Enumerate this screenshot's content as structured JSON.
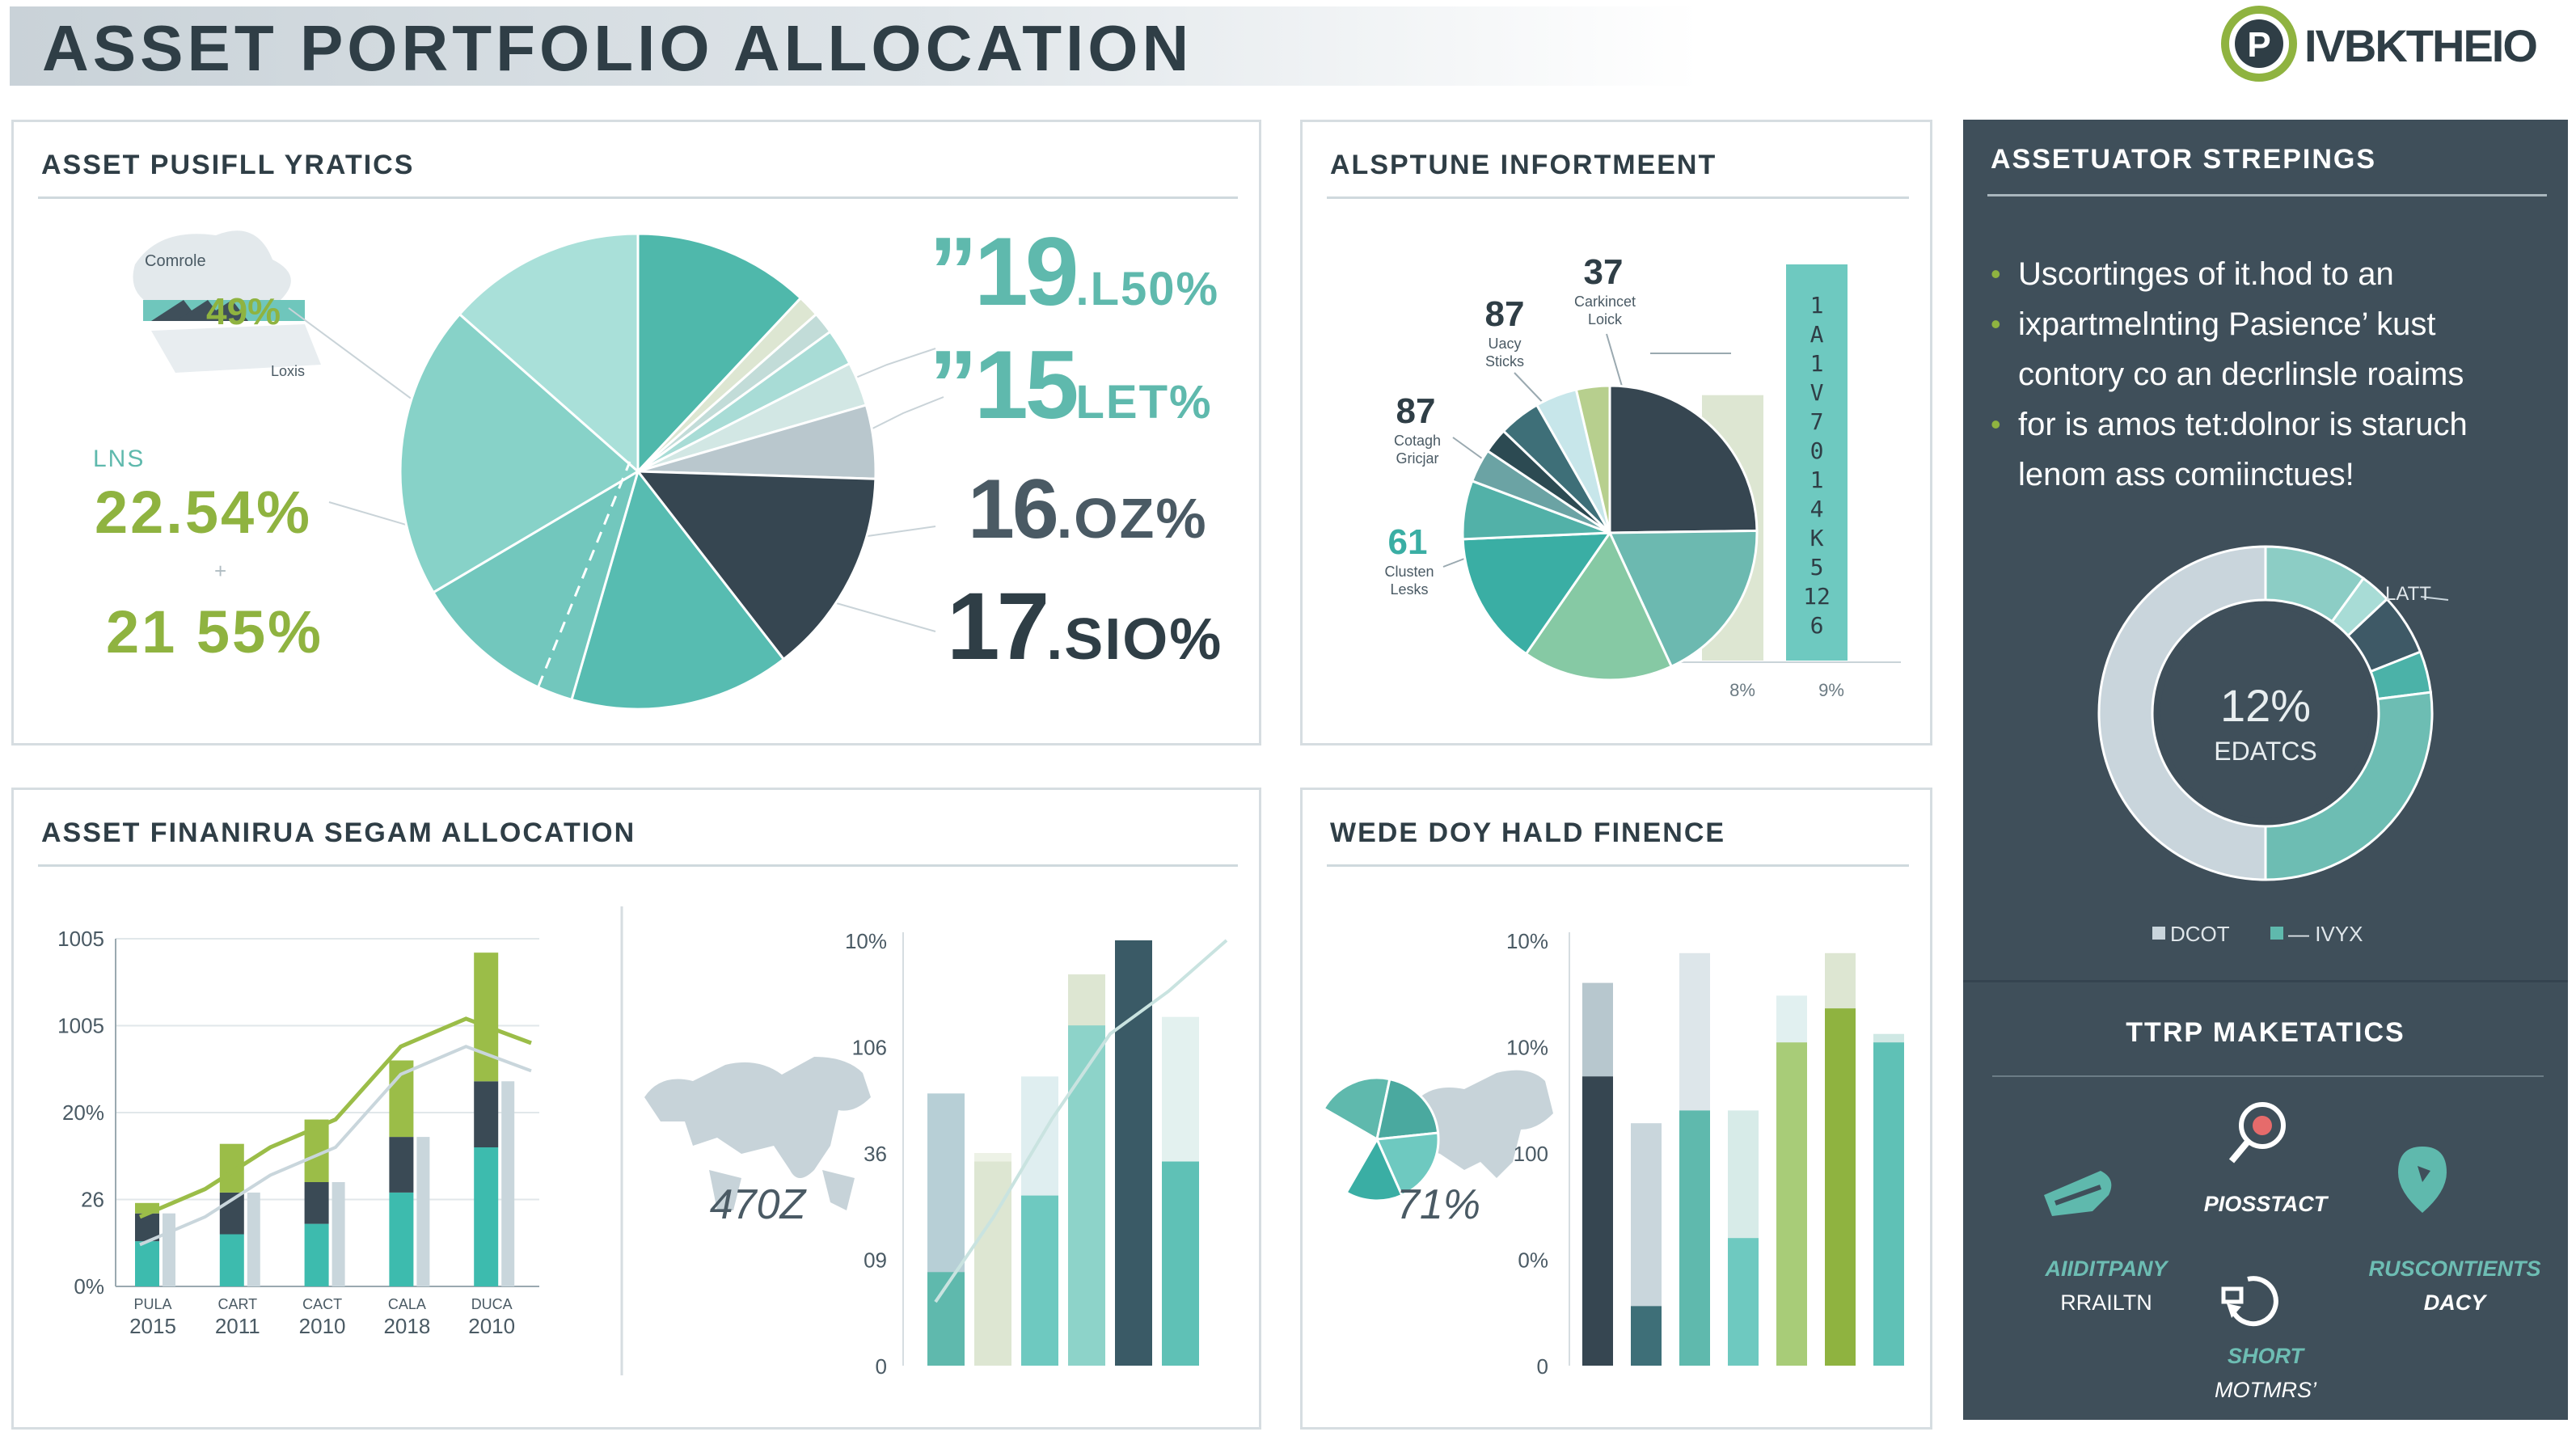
{
  "header": {
    "title": "ASSET PORTFOLIO  ALLOCATION",
    "brand": "IVBKTHEIO",
    "brand_letter": "P"
  },
  "colors": {
    "teal": "#5fb9ad",
    "light_teal": "#8dd3c9",
    "green": "#8fb340",
    "dark": "#3a4a55",
    "slate_panel": "#3f4f5a",
    "pale": "#dde6ea"
  },
  "panels": {
    "ratios": {
      "title": "ASSET PUSIFLL YRATICS",
      "callout_top": "Comrole",
      "callout_value": "49%",
      "callout_small": "Loxis",
      "lns": "LNS",
      "left_values": [
        "22.54%",
        "21 55%"
      ],
      "separator": "+",
      "big_values": [
        {
          "main": "”19",
          "suffix": ".L50%"
        },
        {
          "main": "”15",
          "suffix": "LET%"
        },
        {
          "main": "16",
          "suffix": ".OZ%"
        },
        {
          "main": "17",
          "suffix": ".SIO%"
        }
      ]
    },
    "info": {
      "title": "ALSPTUNE INFORTMEENT",
      "labels": [
        {
          "value": "37",
          "text1": "Carkincet",
          "text2": "Loick"
        },
        {
          "value": "87",
          "text1": "Uacy",
          "text2": "Sticks"
        },
        {
          "value": "87",
          "text1": "Cotagh",
          "text2": "Gricjar"
        },
        {
          "value": "61",
          "text1": "Clusten",
          "text2": "Lesks"
        }
      ],
      "vertical_text": "1 A 1 V 7 0 1 4 K 5 12 6",
      "bottom_labels": [
        "8%",
        "9%"
      ]
    },
    "alloc": {
      "title": "ASSET FINANIRUA SEGAM ALLOCATION",
      "map_value": "470Z"
    },
    "fin": {
      "title": "WEDE DOY HALD FINENCE",
      "map_value": "71%"
    },
    "side": {
      "title": "ASSETUATOR STREPINGS",
      "bullets": [
        "Uscortinges of it.hod to an",
        "ixpartmelnting Pasience’ kust",
        "contory co an decrlinsle roaims",
        "for is amos tet:dolnor is staruch",
        "lenom ass comiinctues!"
      ],
      "donut_center_value": "12%",
      "donut_center_label": "EDATCS",
      "donut_tag": "LATT",
      "legend": [
        {
          "label": "DCOT",
          "color": "#c9d5dc"
        },
        {
          "label": "— IVYX",
          "color": "#5fb9ad"
        }
      ],
      "subtitle": "TTRP MAKETATICS",
      "tactics": [
        {
          "line1": "PIOSSTACT",
          "line2": ""
        },
        {
          "line1": "AIIDITPANY",
          "line2": "RRAILTN"
        },
        {
          "line1": "RUSCONTIENTS",
          "line2": "DACY"
        },
        {
          "line1": "SHORT",
          "line2": "MOTMRS’"
        }
      ]
    }
  },
  "chart_data": [
    {
      "type": "pie",
      "name_ref": "asset ratios pie",
      "slices": [
        {
          "value": 12,
          "color": "#4fb8ab"
        },
        {
          "value": 1.5,
          "color": "#dde6d2"
        },
        {
          "value": 1.5,
          "color": "#c2dcd8"
        },
        {
          "value": 2.5,
          "color": "#a8dcd6"
        },
        {
          "value": 3,
          "color": "#d2e7e4"
        },
        {
          "value": 5,
          "color": "#b9c7cd"
        },
        {
          "value": 14,
          "color": "#364651"
        },
        {
          "value": 15,
          "color": "#57bcb1"
        },
        {
          "value": 12,
          "color": "#72c7bd"
        },
        {
          "value": 20,
          "color": "#87d2c8"
        },
        {
          "value": 13.5,
          "color": "#a9e0d9"
        }
      ]
    },
    {
      "type": "pie",
      "name_ref": "information pie",
      "slices": [
        {
          "value": 27,
          "color": "#364651"
        },
        {
          "value": 20,
          "color": "#6cb9b0"
        },
        {
          "value": 18,
          "color": "#86c9a4"
        },
        {
          "value": 16,
          "color": "#3aaea4"
        },
        {
          "value": 7,
          "color": "#52b1a8"
        },
        {
          "value": 4,
          "color": "#6ba3a4"
        },
        {
          "value": 3,
          "color": "#2c4a52"
        },
        {
          "value": 5,
          "color": "#3e6f78"
        },
        {
          "value": 5,
          "color": "#c7e6ea"
        },
        {
          "value": 4,
          "color": "#b7cf8e"
        }
      ],
      "bars": [
        {
          "label": "8%",
          "value": 0.67,
          "color": "#dde6d2"
        },
        {
          "label": "9%",
          "value": 1.0,
          "color": "#6ec9c0"
        }
      ]
    },
    {
      "type": "bar",
      "name_ref": "stacked allocation bars",
      "y_tick_labels": [
        "1005",
        "1005",
        "20%",
        "26",
        "0%"
      ],
      "categories": [
        {
          "top": "PULA",
          "bottom": "2015"
        },
        {
          "top": "CART",
          "bottom": "2011"
        },
        {
          "top": "CACT",
          "bottom": "2010"
        },
        {
          "top": "CALA",
          "bottom": "2018"
        },
        {
          "top": "DUCA",
          "bottom": "2010"
        }
      ],
      "series": [
        {
          "values": [
            13,
            15,
            18,
            27,
            40
          ]
        },
        {
          "values": [
            8,
            12,
            12,
            16,
            19
          ]
        },
        {
          "values": [
            3,
            14,
            18,
            22,
            37
          ]
        }
      ],
      "ylim": [
        0,
        100
      ],
      "trend_line": [
        20,
        28,
        40,
        48,
        69,
        77,
        70
      ]
    },
    {
      "type": "bar",
      "name_ref": "allocation tall bars",
      "y_tick_labels": [
        "10%",
        "106",
        "36",
        "09",
        "0"
      ],
      "values": [
        64,
        50,
        68,
        92,
        100,
        82
      ],
      "foreground": [
        22,
        48,
        40,
        80,
        100,
        48
      ],
      "ylim": [
        0,
        100
      ],
      "trend_line": [
        15,
        35,
        58,
        78,
        88,
        100
      ]
    },
    {
      "type": "bar",
      "name_ref": "finance bars",
      "y_tick_labels": [
        "10%",
        "10%",
        "100",
        "0%",
        "0"
      ],
      "values": [
        90,
        57,
        97,
        60,
        87,
        97,
        78
      ],
      "foreground": [
        68,
        14,
        60,
        30,
        76,
        84,
        76
      ],
      "ylim": [
        0,
        100
      ]
    },
    {
      "type": "pie",
      "name_ref": "side donut",
      "slices": [
        {
          "value": 10,
          "color": "#8ccdc5"
        },
        {
          "value": 3,
          "color": "#a8dcd6"
        },
        {
          "value": 6,
          "color": "#3e5966"
        },
        {
          "value": 4,
          "color": "#4bb2a8"
        },
        {
          "value": 27,
          "color": "#6dbdb3"
        },
        {
          "value": 50,
          "color": "#c9d5dc"
        }
      ]
    }
  ]
}
